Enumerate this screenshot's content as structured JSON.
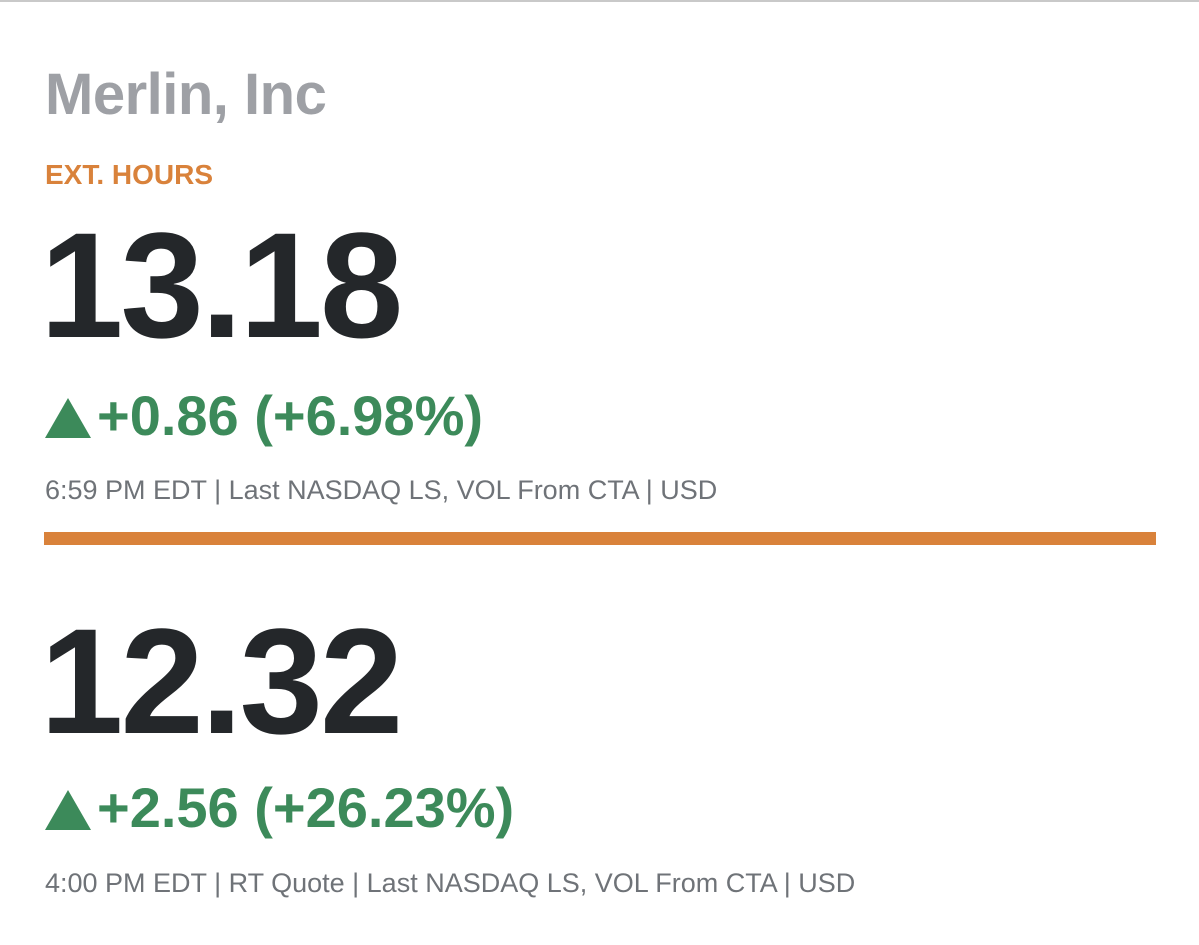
{
  "company": {
    "name": "Merlin, Inc"
  },
  "extended_hours": {
    "label": "EXT. HOURS",
    "price": "13.18",
    "change": "+0.86 (+6.98%)",
    "meta": "6:59 PM EDT | Last NASDAQ LS, VOL From CTA | USD"
  },
  "regular_session": {
    "price": "12.32",
    "change": "+2.56 (+26.23%)",
    "meta": "4:00 PM EDT | RT Quote | Last NASDAQ LS, VOL From CTA | USD"
  },
  "icons": {
    "change_direction": "up-arrow-icon"
  },
  "colors": {
    "accent": "#d9823b",
    "positive": "#3c8a5a",
    "price_text": "#24272a",
    "company_text": "#9ea0a5",
    "meta_text": "#6f7378"
  }
}
